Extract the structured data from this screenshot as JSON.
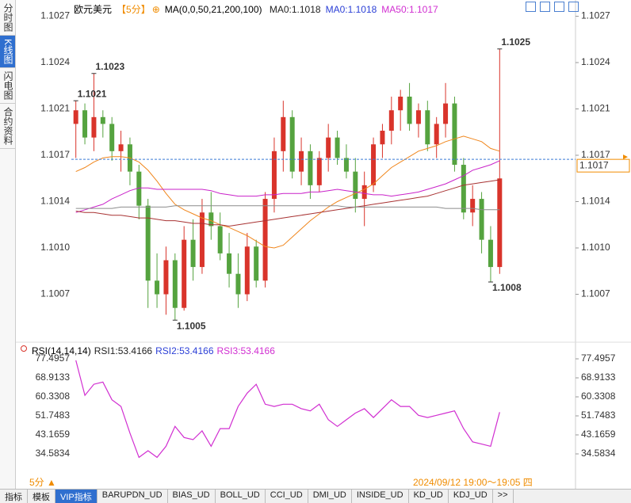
{
  "chart_data": [
    {
      "type": "candlestick",
      "title": "欧元美元",
      "period": "【5分】",
      "indicator": "MA(0,0,50,21,200,100)",
      "legend": [
        {
          "text": "MA0:1.1018",
          "color": "#222222"
        },
        {
          "text": "MA0:1.1018",
          "color": "#2b3fd6"
        },
        {
          "text": "MA50:1.1017",
          "color": "#d12fd1"
        }
      ],
      "up_color": "#d9342b",
      "down_color": "#55a33f",
      "ylim": [
        1.10036,
        1.10283
      ],
      "yticks": [
        {
          "value": 1.1007,
          "label": "1.1007"
        },
        {
          "value": 1.10104,
          "label": "1.1010"
        },
        {
          "value": 1.10138,
          "label": "1.1014"
        },
        {
          "value": 1.10172,
          "label": "1.1017"
        },
        {
          "value": 1.10206,
          "label": "1.1021"
        },
        {
          "value": 1.1024,
          "label": "1.1024"
        },
        {
          "value": 1.10274,
          "label": "1.1027"
        }
      ],
      "candles": [
        [
          1.10195,
          1.10212,
          1.1017,
          1.10205
        ],
        [
          1.10205,
          1.1021,
          1.1018,
          1.10185
        ],
        [
          1.10185,
          1.10232,
          1.10175,
          1.102
        ],
        [
          1.102,
          1.10205,
          1.10185,
          1.10195
        ],
        [
          1.10195,
          1.102,
          1.10168,
          1.10175
        ],
        [
          1.10175,
          1.1019,
          1.1016,
          1.1018
        ],
        [
          1.1018,
          1.10185,
          1.1015,
          1.1016
        ],
        [
          1.1016,
          1.10165,
          1.10125,
          1.10135
        ],
        [
          1.10135,
          1.1014,
          1.1006,
          1.1008
        ],
        [
          1.1008,
          1.101,
          1.1006,
          1.1007
        ],
        [
          1.1007,
          1.10105,
          1.10055,
          1.10095
        ],
        [
          1.10095,
          1.101,
          1.10051,
          1.1006
        ],
        [
          1.1006,
          1.1012,
          1.10058,
          1.1011
        ],
        [
          1.1011,
          1.10125,
          1.1008,
          1.1009
        ],
        [
          1.1009,
          1.1014,
          1.10085,
          1.1013
        ],
        [
          1.1013,
          1.10145,
          1.1011,
          1.1012
        ],
        [
          1.1012,
          1.1013,
          1.10095,
          1.101
        ],
        [
          1.101,
          1.10115,
          1.10075,
          1.10085
        ],
        [
          1.10085,
          1.101,
          1.1006,
          1.1007
        ],
        [
          1.1007,
          1.10115,
          1.10065,
          1.10105
        ],
        [
          1.10105,
          1.1011,
          1.10075,
          1.1008
        ],
        [
          1.1008,
          1.10145,
          1.10075,
          1.1014
        ],
        [
          1.1014,
          1.10185,
          1.1013,
          1.10175
        ],
        [
          1.10175,
          1.10212,
          1.1016,
          1.102
        ],
        [
          1.102,
          1.10205,
          1.10155,
          1.1016
        ],
        [
          1.1016,
          1.10185,
          1.1015,
          1.10175
        ],
        [
          1.10175,
          1.1018,
          1.1014,
          1.1015
        ],
        [
          1.1015,
          1.10175,
          1.10145,
          1.1017
        ],
        [
          1.1017,
          1.10195,
          1.1016,
          1.10185
        ],
        [
          1.10185,
          1.1019,
          1.10165,
          1.1017
        ],
        [
          1.1017,
          1.1018,
          1.10155,
          1.1016
        ],
        [
          1.1016,
          1.1017,
          1.1013,
          1.1014
        ],
        [
          1.1014,
          1.1016,
          1.1012,
          1.1015
        ],
        [
          1.1015,
          1.10185,
          1.10145,
          1.1018
        ],
        [
          1.1018,
          1.10195,
          1.1017,
          1.1019
        ],
        [
          1.1019,
          1.10215,
          1.1018,
          1.10205
        ],
        [
          1.10205,
          1.1022,
          1.1019,
          1.10215
        ],
        [
          1.10215,
          1.10225,
          1.1019,
          1.10195
        ],
        [
          1.10195,
          1.1021,
          1.10185,
          1.10205
        ],
        [
          1.10205,
          1.10212,
          1.10175,
          1.1018
        ],
        [
          1.1018,
          1.102,
          1.1017,
          1.10195
        ],
        [
          1.10195,
          1.10225,
          1.10185,
          1.1021
        ],
        [
          1.1021,
          1.10215,
          1.1016,
          1.10165
        ],
        [
          1.10165,
          1.1017,
          1.10125,
          1.1013
        ],
        [
          1.1013,
          1.1015,
          1.1012,
          1.1014
        ],
        [
          1.1014,
          1.10145,
          1.101,
          1.1011
        ],
        [
          1.1011,
          1.1012,
          1.10079,
          1.1009
        ],
        [
          1.1009,
          1.1025,
          1.10085,
          1.10155
        ]
      ],
      "series": [
        {
          "color": "#f0861c",
          "values": [
            1.1016,
            1.10163,
            1.10167,
            1.1017,
            1.10171,
            1.10171,
            1.1017,
            1.10167,
            1.10161,
            1.10153,
            1.10144,
            1.10136,
            1.10132,
            1.10129,
            1.10126,
            1.10124,
            1.10121,
            1.10119,
            1.10116,
            1.10113,
            1.10109,
            1.10105,
            1.10104,
            1.10106,
            1.10112,
            1.10118,
            1.10124,
            1.10129,
            1.10134,
            1.10138,
            1.10141,
            1.10144,
            1.10147,
            1.10151,
            1.10157,
            1.10163,
            1.10167,
            1.10171,
            1.10175,
            1.10177,
            1.10179,
            1.10182,
            1.10184,
            1.10186,
            1.10184,
            1.10182,
            1.10177,
            1.10175
          ]
        },
        {
          "color": "#c922c9",
          "values": [
            1.1013,
            1.10132,
            1.10134,
            1.10136,
            1.1014,
            1.10143,
            1.10146,
            1.10148,
            1.10148,
            1.10147,
            1.10147,
            1.10147,
            1.10147,
            1.10147,
            1.10147,
            1.10146,
            1.10144,
            1.10143,
            1.10142,
            1.10142,
            1.10142,
            1.10143,
            1.10143,
            1.10144,
            1.10144,
            1.10144,
            1.10145,
            1.10145,
            1.10146,
            1.10147,
            1.10146,
            1.10145,
            1.10144,
            1.10143,
            1.10143,
            1.10142,
            1.10143,
            1.10144,
            1.10145,
            1.10147,
            1.10149,
            1.10151,
            1.10154,
            1.10157,
            1.10161,
            1.10163,
            1.10165,
            1.10168
          ]
        },
        {
          "color": "#a83232",
          "values": [
            1.10131,
            1.1013,
            1.1013,
            1.10129,
            1.10128,
            1.10128,
            1.10127,
            1.10126,
            1.10126,
            1.10125,
            1.10124,
            1.10124,
            1.10123,
            1.10122,
            1.10122,
            1.10121,
            1.10121,
            1.1012,
            1.10121,
            1.10122,
            1.10123,
            1.10124,
            1.10125,
            1.10126,
            1.10127,
            1.10128,
            1.10129,
            1.1013,
            1.10131,
            1.10132,
            1.10133,
            1.10134,
            1.10135,
            1.10136,
            1.10137,
            1.10138,
            1.10139,
            1.1014,
            1.10141,
            1.10142,
            1.10144,
            1.10146,
            1.10148,
            1.1015,
            1.10151,
            1.10152,
            1.10153,
            1.10154
          ]
        },
        {
          "color": "#8c8c8c",
          "values": [
            1.10133,
            1.10133,
            1.10133,
            1.10133,
            1.10133,
            1.10134,
            1.10134,
            1.10134,
            1.10134,
            1.10134,
            1.10134,
            1.10135,
            1.10135,
            1.10135,
            1.10135,
            1.10135,
            1.10135,
            1.10135,
            1.10135,
            1.10135,
            1.10135,
            1.10135,
            1.10135,
            1.10135,
            1.10135,
            1.10135,
            1.10135,
            1.10135,
            1.10135,
            1.10135,
            1.10134,
            1.10134,
            1.10134,
            1.10134,
            1.10134,
            1.10134,
            1.10134,
            1.10134,
            1.10134,
            1.10134,
            1.10134,
            1.10133,
            1.10133,
            1.10133,
            1.10133,
            1.10132,
            1.10132,
            1.10132
          ]
        }
      ],
      "annotations": [
        {
          "text": "1.1023",
          "value": 1.10232
        },
        {
          "text": "1.1005",
          "value": 1.10051
        },
        {
          "text": "1.1021",
          "value": 1.10212
        },
        {
          "text": "1.1025",
          "value": 1.1025
        },
        {
          "text": "1.1008",
          "value": 1.10079
        }
      ],
      "last": {
        "value": 1.10169,
        "label": "1.1017",
        "color": "#f08c00"
      }
    },
    {
      "type": "line",
      "title": "RSI(14,14,14)",
      "legend": [
        {
          "text": "RSI1:53.4166",
          "color": "#222222"
        },
        {
          "text": "RSI2:53.4166",
          "color": "#2b3fd6"
        },
        {
          "text": "RSI3:53.4166",
          "color": "#d12fd1"
        }
      ],
      "ylim": [
        25.64,
        79.28
      ],
      "yticks": [
        34.5834,
        43.1659,
        51.7483,
        60.3308,
        68.9133,
        77.4957
      ],
      "series": [
        {
          "color": "#d12fd1",
          "values": [
            76.8,
            61,
            66,
            67,
            59,
            56,
            44,
            33,
            36,
            33,
            38,
            47,
            42,
            41,
            45,
            38,
            46,
            46,
            56,
            62,
            66,
            57,
            56,
            57,
            57,
            55,
            54,
            57,
            50,
            47,
            50,
            53,
            55,
            51,
            55,
            59,
            56,
            56,
            52,
            51,
            52,
            53,
            54,
            46,
            40,
            39,
            38,
            53.4166
          ]
        }
      ]
    }
  ],
  "ui": {
    "side_tabs": [
      "分时图",
      "K线图",
      "闪电图",
      "合约资料"
    ],
    "period_button": "5分 ▲",
    "time_range": "2024/09/12 19:00～19:05 四",
    "bottom_tabs": [
      "指标",
      "模板",
      "VIP指标",
      "BARUPDN_UD",
      "BIAS_UD",
      "BOLL_UD",
      "CCI_UD",
      "DMI_UD",
      "INSIDE_UD",
      "KD_UD",
      "KDJ_UD",
      ">>"
    ]
  }
}
